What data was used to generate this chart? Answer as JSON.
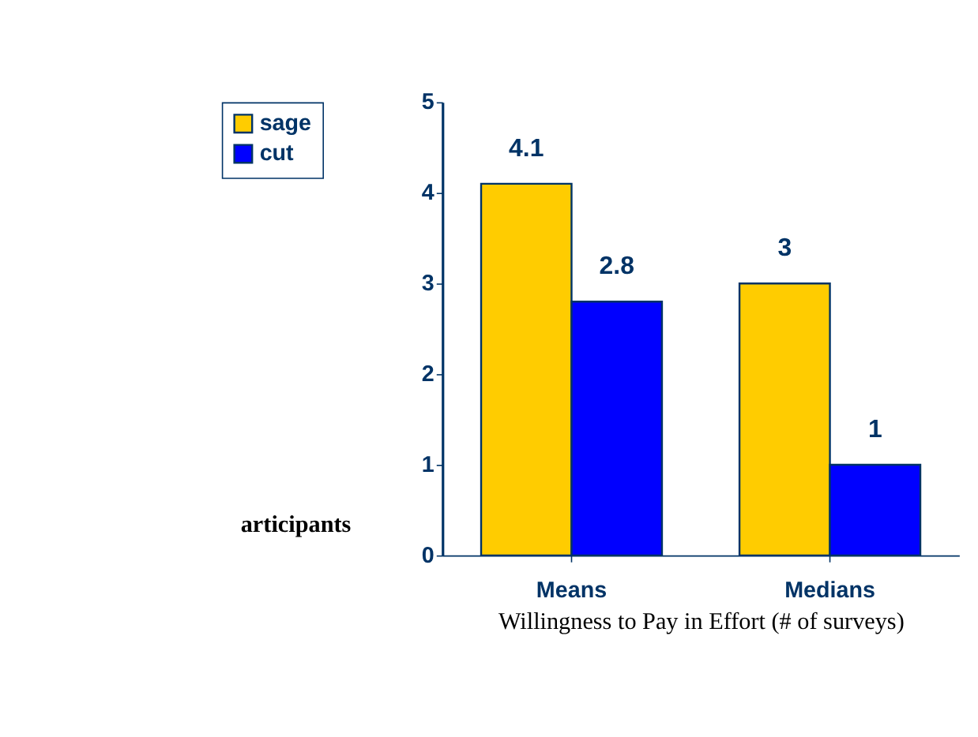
{
  "chart_data": {
    "type": "bar",
    "xlabel": "Willingness to Pay in Effort (# of surveys)",
    "categories": [
      "Means",
      "Medians"
    ],
    "series": [
      {
        "name": "sage",
        "color": "#ffcc00",
        "values": [
          4.1,
          3
        ]
      },
      {
        "name": "cut",
        "color": "#0000ff",
        "values": [
          2.8,
          1
        ]
      }
    ],
    "ylim": [
      0,
      5
    ],
    "yticks": [
      0,
      1,
      2,
      3,
      4,
      5
    ],
    "grid": false,
    "legend": "top left",
    "data_labels": true,
    "annotations": [
      "articipants"
    ]
  }
}
